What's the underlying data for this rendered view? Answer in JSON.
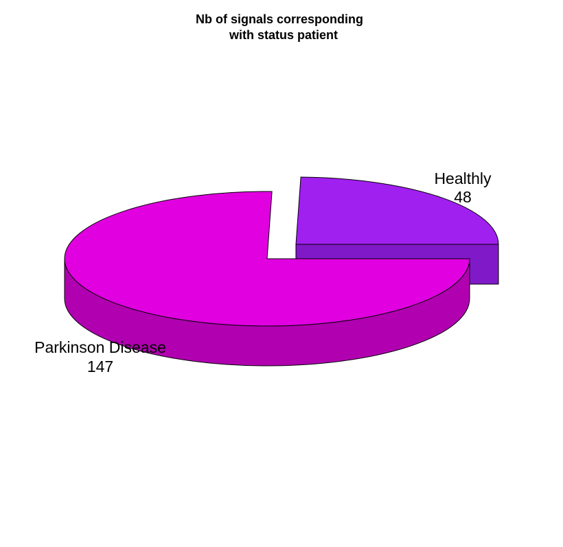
{
  "chart_data": {
    "type": "pie",
    "style": "3d-exploded",
    "title_lines": [
      "Nb of signals corresponding",
      "with status patient"
    ],
    "slices": [
      {
        "label": "Healthly",
        "value": 48,
        "color": "#a020f0",
        "side_color": "#8019c8"
      },
      {
        "label": "Parkinson Disease",
        "value": 147,
        "color": "#e000e0",
        "side_color": "#b000b0"
      }
    ],
    "outline_color": "#000000",
    "legend": "none"
  }
}
